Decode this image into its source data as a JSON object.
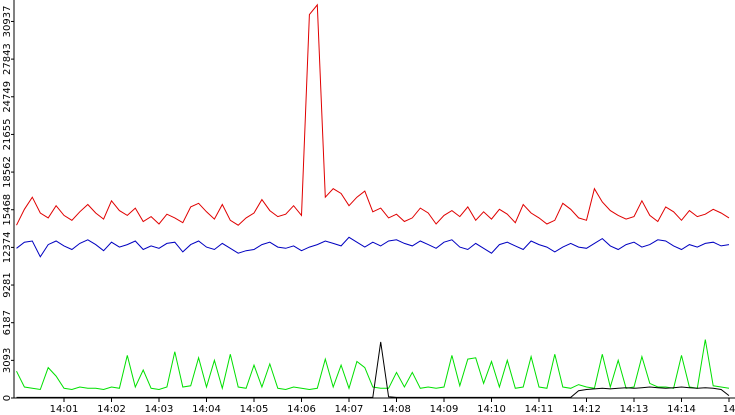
{
  "chart_data": {
    "type": "line",
    "categories": [
      null,
      null,
      null,
      null,
      null,
      null,
      "14:01",
      null,
      null,
      null,
      null,
      null,
      "14:02",
      null,
      null,
      null,
      null,
      null,
      "14:03",
      null,
      null,
      null,
      null,
      null,
      "14:04",
      null,
      null,
      null,
      null,
      null,
      "14:05",
      null,
      null,
      null,
      null,
      null,
      "14:06",
      null,
      null,
      null,
      null,
      null,
      "14:07",
      null,
      null,
      null,
      null,
      null,
      "14:08",
      null,
      null,
      null,
      null,
      null,
      "14:09",
      null,
      null,
      null,
      null,
      null,
      "14:10",
      null,
      null,
      null,
      null,
      null,
      "14:11",
      null,
      null,
      null,
      null,
      null,
      "14:12",
      null,
      null,
      null,
      null,
      null,
      "14:13",
      null,
      null,
      null,
      null,
      null,
      "14:14",
      null,
      null,
      null,
      null,
      null,
      "14"
    ],
    "series": [
      {
        "color": "#e00000",
        "values": [
          14200,
          15500,
          16500,
          15200,
          14800,
          15800,
          15000,
          14600,
          15300,
          15900,
          15200,
          14700,
          16200,
          15400,
          15000,
          15600,
          14500,
          14900,
          14300,
          15100,
          14800,
          14400,
          15700,
          16000,
          15300,
          14700,
          15900,
          14600,
          14200,
          14800,
          15200,
          16300,
          15400,
          14900,
          15100,
          15800,
          15000,
          31500,
          32300,
          16500,
          17200,
          16800,
          15800,
          16500,
          17000,
          15300,
          15600,
          14800,
          15100,
          14500,
          14800,
          15600,
          15200,
          14300,
          15000,
          15400,
          14900,
          15700,
          14600,
          15300,
          14700,
          15500,
          15100,
          14400,
          15900,
          15200,
          14800,
          14300,
          14600,
          16000,
          15500,
          14800,
          14600,
          17200,
          16100,
          15400,
          15000,
          14700,
          14900,
          16200,
          15000,
          14500,
          15700,
          15300,
          14600,
          15400,
          14900,
          15100,
          15500,
          15200,
          14800
        ]
      },
      {
        "color": "#0000c0",
        "values": [
          12300,
          12800,
          12900,
          11600,
          12600,
          12900,
          12500,
          12200,
          12700,
          13000,
          12600,
          12100,
          12800,
          12400,
          12600,
          12900,
          12200,
          12500,
          12300,
          12700,
          12800,
          12000,
          12600,
          12900,
          12400,
          12200,
          12700,
          12300,
          11900,
          12100,
          12200,
          12600,
          12800,
          12400,
          12300,
          12500,
          12100,
          12400,
          12600,
          12900,
          12700,
          12500,
          13200,
          12800,
          12400,
          12800,
          12500,
          12900,
          13000,
          12700,
          12500,
          12900,
          12600,
          12300,
          12800,
          13000,
          12400,
          12200,
          12700,
          12300,
          11900,
          12600,
          12800,
          12500,
          12200,
          12900,
          12600,
          12400,
          12000,
          12400,
          12700,
          12400,
          12300,
          12700,
          13100,
          12500,
          12200,
          12600,
          12800,
          12400,
          12600,
          13000,
          12900,
          12500,
          12200,
          12600,
          12400,
          12700,
          12800,
          12500,
          12600
        ]
      },
      {
        "color": "#00e000",
        "values": [
          2200,
          900,
          800,
          700,
          2500,
          1800,
          800,
          700,
          900,
          800,
          800,
          700,
          900,
          800,
          3500,
          900,
          2300,
          800,
          700,
          900,
          3800,
          900,
          1000,
          3300,
          900,
          3100,
          800,
          3600,
          900,
          800,
          2700,
          900,
          2800,
          800,
          700,
          900,
          800,
          700,
          800,
          3200,
          900,
          2700,
          800,
          3000,
          2500,
          900,
          800,
          800,
          2100,
          900,
          2100,
          800,
          900,
          800,
          900,
          3500,
          1000,
          3200,
          3300,
          1200,
          3000,
          900,
          3100,
          800,
          900,
          3400,
          900,
          800,
          3600,
          900,
          800,
          1100,
          900,
          800,
          3600,
          900,
          3100,
          800,
          900,
          3400,
          1200,
          900,
          900,
          800,
          3500,
          900,
          800,
          4800,
          1000,
          900,
          800
        ]
      },
      {
        "color": "#000000",
        "values": [
          50,
          50,
          50,
          50,
          50,
          50,
          50,
          50,
          50,
          50,
          50,
          50,
          50,
          50,
          50,
          50,
          50,
          50,
          50,
          50,
          50,
          50,
          50,
          50,
          50,
          50,
          50,
          50,
          50,
          50,
          50,
          50,
          50,
          50,
          50,
          50,
          50,
          50,
          50,
          50,
          50,
          50,
          50,
          50,
          50,
          50,
          4600,
          100,
          50,
          50,
          50,
          50,
          50,
          50,
          50,
          50,
          50,
          50,
          50,
          50,
          50,
          50,
          50,
          50,
          50,
          50,
          50,
          50,
          50,
          50,
          50,
          600,
          700,
          750,
          800,
          750,
          800,
          850,
          800,
          850,
          900,
          850,
          800,
          850,
          900,
          850,
          800,
          850,
          800,
          700,
          200
        ]
      }
    ],
    "ylim": [
      0,
      32700
    ],
    "yticks": [
      0,
      3093,
      6187,
      9281,
      12374,
      15468,
      18562,
      21655,
      24749,
      27843,
      30937
    ]
  }
}
